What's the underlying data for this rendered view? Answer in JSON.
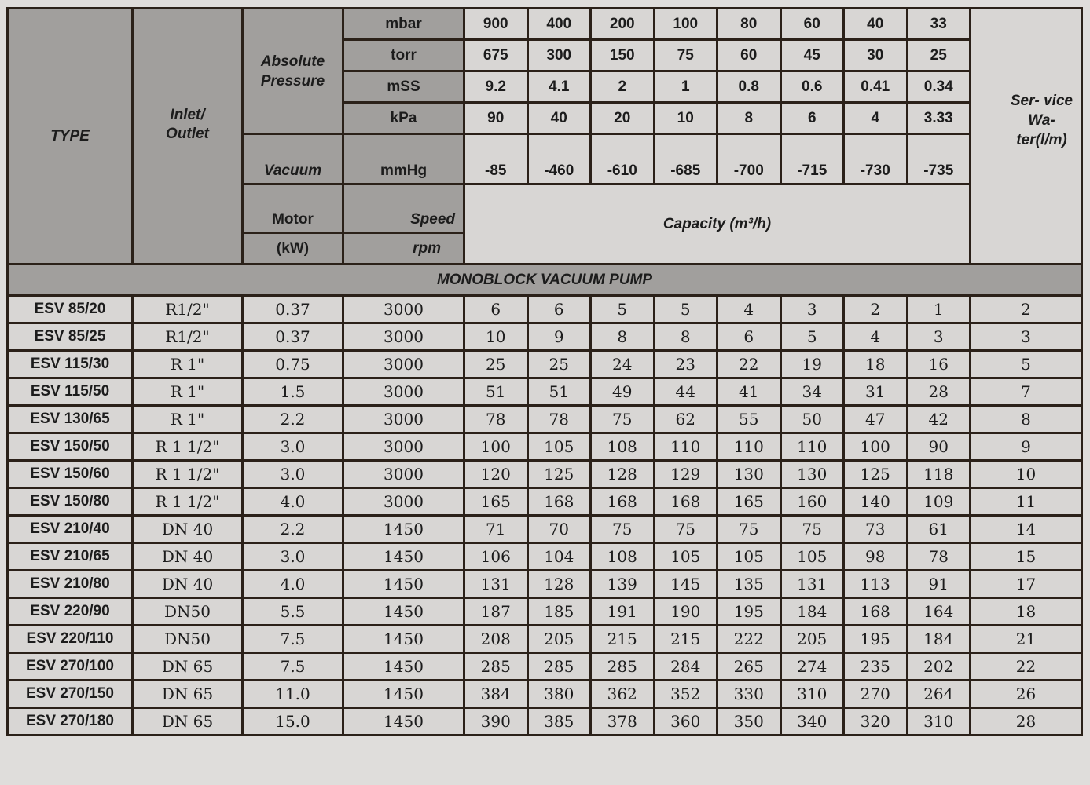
{
  "header": {
    "type": "TYPE",
    "inlet_outlet": "Inlet/ Outlet",
    "absolute_pressure": "Absolute Pressure",
    "vacuum": "Vacuum",
    "motor": "Motor",
    "motor_unit": "(kW)",
    "speed": "Speed",
    "speed_unit": "rpm",
    "capacity": "Capacity (m³/h)",
    "service_water": "Ser- vice Wa- ter(l/m)",
    "pressure_rows": [
      {
        "unit": "mbar",
        "values": [
          "900",
          "400",
          "200",
          "100",
          "80",
          "60",
          "40",
          "33"
        ]
      },
      {
        "unit": "torr",
        "values": [
          "675",
          "300",
          "150",
          "75",
          "60",
          "45",
          "30",
          "25"
        ]
      },
      {
        "unit": "mSS",
        "values": [
          "9.2",
          "4.1",
          "2",
          "1",
          "0.8",
          "0.6",
          "0.41",
          "0.34"
        ]
      },
      {
        "unit": "kPa",
        "values": [
          "90",
          "40",
          "20",
          "10",
          "8",
          "6",
          "4",
          "3.33"
        ]
      }
    ],
    "vacuum_row": {
      "unit": "mmHg",
      "values": [
        "-85",
        "-460",
        "-610",
        "-685",
        "-700",
        "-715",
        "-730",
        "-735"
      ]
    }
  },
  "section_title": "MONOBLOCK VACUUM PUMP",
  "rows": [
    {
      "type": "ESV 85/20",
      "inlet": "R1/2\"",
      "kw": "0.37",
      "rpm": "3000",
      "capacity": [
        "6",
        "6",
        "5",
        "5",
        "4",
        "3",
        "2",
        "1"
      ],
      "water": "2"
    },
    {
      "type": "ESV 85/25",
      "inlet": "R1/2\"",
      "kw": "0.37",
      "rpm": "3000",
      "capacity": [
        "10",
        "9",
        "8",
        "8",
        "6",
        "5",
        "4",
        "3"
      ],
      "water": "3"
    },
    {
      "type": "ESV 115/30",
      "inlet": "R 1\"",
      "kw": "0.75",
      "rpm": "3000",
      "capacity": [
        "25",
        "25",
        "24",
        "23",
        "22",
        "19",
        "18",
        "16"
      ],
      "water": "5"
    },
    {
      "type": "ESV 115/50",
      "inlet": "R 1\"",
      "kw": "1.5",
      "rpm": "3000",
      "capacity": [
        "51",
        "51",
        "49",
        "44",
        "41",
        "34",
        "31",
        "28"
      ],
      "water": "7"
    },
    {
      "type": "ESV 130/65",
      "inlet": "R 1\"",
      "kw": "2.2",
      "rpm": "3000",
      "capacity": [
        "78",
        "78",
        "75",
        "62",
        "55",
        "50",
        "47",
        "42"
      ],
      "water": "8"
    },
    {
      "type": "ESV 150/50",
      "inlet": "R 1 1/2\"",
      "kw": "3.0",
      "rpm": "3000",
      "capacity": [
        "100",
        "105",
        "108",
        "110",
        "110",
        "110",
        "100",
        "90"
      ],
      "water": "9"
    },
    {
      "type": "ESV 150/60",
      "inlet": "R 1 1/2\"",
      "kw": "3.0",
      "rpm": "3000",
      "capacity": [
        "120",
        "125",
        "128",
        "129",
        "130",
        "130",
        "125",
        "118"
      ],
      "water": "10"
    },
    {
      "type": "ESV 150/80",
      "inlet": "R 1 1/2\"",
      "kw": "4.0",
      "rpm": "3000",
      "capacity": [
        "165",
        "168",
        "168",
        "168",
        "165",
        "160",
        "140",
        "109"
      ],
      "water": "11"
    },
    {
      "type": "ESV 210/40",
      "inlet": "DN 40",
      "kw": "2.2",
      "rpm": "1450",
      "capacity": [
        "71",
        "70",
        "75",
        "75",
        "75",
        "75",
        "73",
        "61"
      ],
      "water": "14"
    },
    {
      "type": "ESV 210/65",
      "inlet": "DN 40",
      "kw": "3.0",
      "rpm": "1450",
      "capacity": [
        "106",
        "104",
        "108",
        "105",
        "105",
        "105",
        "98",
        "78"
      ],
      "water": "15"
    },
    {
      "type": "ESV 210/80",
      "inlet": "DN 40",
      "kw": "4.0",
      "rpm": "1450",
      "capacity": [
        "131",
        "128",
        "139",
        "145",
        "135",
        "131",
        "113",
        "91"
      ],
      "water": "17"
    },
    {
      "type": "ESV 220/90",
      "inlet": "DN50",
      "kw": "5.5",
      "rpm": "1450",
      "capacity": [
        "187",
        "185",
        "191",
        "190",
        "195",
        "184",
        "168",
        "164"
      ],
      "water": "18"
    },
    {
      "type": "ESV 220/110",
      "inlet": "DN50",
      "kw": "7.5",
      "rpm": "1450",
      "capacity": [
        "208",
        "205",
        "215",
        "215",
        "222",
        "205",
        "195",
        "184"
      ],
      "water": "21"
    },
    {
      "type": "ESV 270/100",
      "inlet": "DN 65",
      "kw": "7.5",
      "rpm": "1450",
      "capacity": [
        "285",
        "285",
        "285",
        "284",
        "265",
        "274",
        "235",
        "202"
      ],
      "water": "22"
    },
    {
      "type": "ESV 270/150",
      "inlet": "DN 65",
      "kw": "11.0",
      "rpm": "1450",
      "capacity": [
        "384",
        "380",
        "362",
        "352",
        "330",
        "310",
        "270",
        "264"
      ],
      "water": "26"
    },
    {
      "type": "ESV 270/180",
      "inlet": "DN 65",
      "kw": "15.0",
      "rpm": "1450",
      "capacity": [
        "390",
        "385",
        "378",
        "360",
        "350",
        "340",
        "320",
        "310"
      ],
      "water": "28"
    }
  ]
}
